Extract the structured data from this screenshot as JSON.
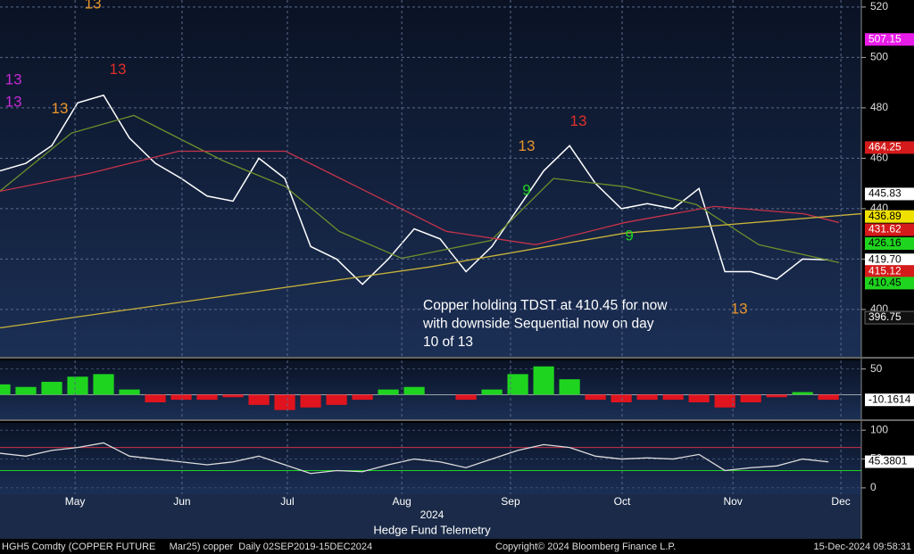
{
  "chart_data": [
    {
      "type": "line",
      "xlim": [
        0,
        33.27
      ],
      "ylim": [
        381.2,
        522.8
      ],
      "yticks": [
        400,
        420,
        440,
        460,
        480,
        500,
        520
      ],
      "grid": true,
      "x": [
        0,
        1,
        2,
        3,
        4,
        5,
        6,
        7,
        8,
        9,
        10,
        11,
        12,
        13,
        14,
        15,
        16,
        17,
        18,
        19,
        20,
        21,
        22,
        23,
        24,
        25,
        26,
        27,
        28,
        29,
        30,
        31,
        32
      ],
      "series": [
        {
          "color": "#ffffff",
          "values": [
            455,
            458,
            465,
            482,
            485,
            468,
            458,
            452,
            445,
            443,
            460,
            452,
            425,
            420,
            410,
            420,
            432,
            428,
            415,
            425,
            440,
            455,
            465,
            450,
            440,
            442,
            440,
            448,
            415,
            415,
            412,
            420,
            419.7
          ]
        },
        {
          "color": "#6e8f2c",
          "x": [
            0,
            2.76,
            5.17,
            8.62,
            11.03,
            13.1,
            15.52,
            18.97,
            21.38,
            24.14,
            26.9,
            29.31,
            32.41
          ],
          "values": [
            447,
            470,
            477,
            459,
            448.7,
            431,
            420.3,
            427.4,
            452,
            448.7,
            441.6,
            425.7,
            418.6
          ]
        },
        {
          "color": "#c8324a",
          "x": [
            0,
            3.45,
            6.9,
            11.03,
            13.79,
            17.24,
            20.69,
            24.14,
            27.59,
            31.03,
            32.41
          ],
          "values": [
            446.9,
            454,
            462.8,
            462.8,
            448.7,
            431,
            425.7,
            434.5,
            440.9,
            438,
            434.5
          ]
        },
        {
          "color": "#c9b33a",
          "x": [
            0,
            16.55,
            24.14,
            33.27
          ],
          "values": [
            392.7,
            416.8,
            430.3,
            438
          ]
        }
      ],
      "price_labels": [
        {
          "value": 507.15,
          "label": "507.15",
          "color": "#e81ce8"
        },
        {
          "value": 464.25,
          "label": "464.25",
          "color": "#d41a1a"
        },
        {
          "value": 445.83,
          "label": "445.83",
          "color": "#ffffff"
        },
        {
          "value": 436.89,
          "label": "436.89",
          "color": "#f0e000"
        },
        {
          "value": 431.62,
          "label": "431.62",
          "color": "#d41a1a"
        },
        {
          "value": 426.16,
          "label": "426.16",
          "color": "#1fd41f"
        },
        {
          "value": 419.7,
          "label": "419.70",
          "color": "#ffffff"
        },
        {
          "value": 415.12,
          "label": "415.12",
          "color": "#d41a1a"
        },
        {
          "value": 410.45,
          "label": "410.45",
          "color": "#1fd41f"
        },
        {
          "value": 396.75,
          "label": "396.75",
          "color": "#101010"
        }
      ],
      "annotations": [
        {
          "text": "13",
          "x": 3.59,
          "y": 521,
          "color": "#e8952a"
        },
        {
          "text": "13",
          "x": 0.52,
          "y": 491,
          "color": "#c42ad4"
        },
        {
          "text": "13",
          "x": 0.52,
          "y": 482,
          "color": "#c42ad4"
        },
        {
          "text": "13",
          "x": 2.31,
          "y": 479.5,
          "color": "#e8952a"
        },
        {
          "text": "13",
          "x": 4.55,
          "y": 495,
          "color": "#e0302a"
        },
        {
          "text": "13",
          "x": 20.34,
          "y": 464.6,
          "color": "#e8952a"
        },
        {
          "text": "13",
          "x": 22.34,
          "y": 474.5,
          "color": "#e0302a"
        },
        {
          "text": "9",
          "x": 20.34,
          "y": 447,
          "color": "#1fd41f"
        },
        {
          "text": "9",
          "x": 24.31,
          "y": 429,
          "color": "#1fd41f"
        },
        {
          "text": "13",
          "x": 28.55,
          "y": 400,
          "color": "#e8952a"
        }
      ],
      "note": [
        "Copper holding TDST at 410.45 for now",
        "with downside Sequential now on day",
        "10 of 13"
      ]
    },
    {
      "type": "bar",
      "xlim": [
        0,
        33.27
      ],
      "ylim": [
        -48,
        66.7
      ],
      "yticks": [
        50
      ],
      "color_up": "#1fd41f",
      "color_down": "#e0141e",
      "values": [
        20,
        15,
        25,
        35,
        40,
        10,
        -15,
        -10,
        -10,
        -5,
        -20,
        -30,
        -25,
        -20,
        -10,
        10,
        15,
        0,
        -10,
        10,
        40,
        55,
        30,
        -10,
        -15,
        -10,
        -10,
        -15,
        -25,
        -15,
        -5,
        5,
        -10
      ],
      "last_label": {
        "value": -10.1614,
        "label": "-10.1614"
      }
    },
    {
      "type": "rsi",
      "xlim": [
        0,
        33.27
      ],
      "ylim": [
        -11,
        112.7
      ],
      "yticks": [
        0,
        50,
        100
      ],
      "bands": [
        {
          "value": 70,
          "color": "#c8324a"
        },
        {
          "value": 30,
          "color": "#1fd41f"
        }
      ],
      "color": "#dcdcdc",
      "values": [
        60,
        55,
        65,
        70,
        78,
        55,
        50,
        45,
        40,
        45,
        55,
        40,
        25,
        30,
        28,
        40,
        50,
        45,
        35,
        50,
        65,
        75,
        70,
        55,
        50,
        52,
        50,
        58,
        30,
        35,
        38,
        50,
        45
      ],
      "last_label": {
        "value": 45.3801,
        "label": "45.3801"
      }
    },
    {
      "type": "axis",
      "xlim": [
        0,
        33.27
      ],
      "xticks": [
        {
          "value": 2.9,
          "label": "May"
        },
        {
          "value": 7.03,
          "label": "Jun"
        },
        {
          "value": 11.1,
          "label": "Jul"
        },
        {
          "value": 15.52,
          "label": "Aug"
        },
        {
          "value": 19.72,
          "label": "Sep"
        },
        {
          "value": 24.03,
          "label": "Oct"
        },
        {
          "value": 28.31,
          "label": "Nov"
        },
        {
          "value": 32.48,
          "label": "Dec"
        }
      ],
      "year": "2024",
      "caption": "Hedge Fund Telemetry"
    },
    {
      "type": "footer",
      "left": "HGH5 Comdty (COPPER FUTURE     Mar25) copper  Daily 02SEP2019-15DEC2024",
      "center": "Copyright© 2024 Bloomberg Finance L.P.",
      "right": "15-Dec-2024 09:58:31"
    }
  ]
}
